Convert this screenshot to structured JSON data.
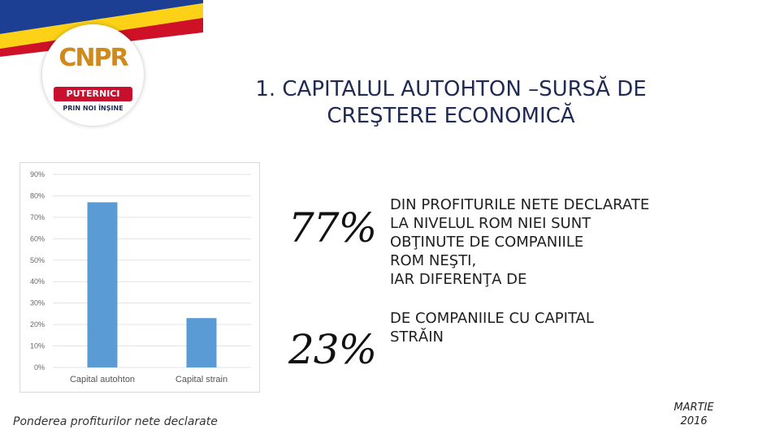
{
  "logo": {
    "mark": "CNPR",
    "band": "PUTERNICI",
    "tagline": "PRIN NOI ÎNȘINE"
  },
  "title": {
    "line1": "1. CAPITALUL AUTOHTON –SURSĂ DE",
    "line2": "CREŞTERE ECONOMICĂ"
  },
  "chart_data": {
    "type": "bar",
    "categories": [
      "Capital autohton",
      "Capital strain"
    ],
    "values": [
      77,
      23
    ],
    "ylim": [
      0,
      90
    ],
    "yticks": [
      "0%",
      "10%",
      "20%",
      "30%",
      "40%",
      "50%",
      "60%",
      "70%",
      "80%",
      "90%"
    ],
    "grid": true,
    "bar_color": "#5b9bd5"
  },
  "chart_caption": "Ponderea profiturilor nete declarate",
  "stats": [
    {
      "value": "77%",
      "lines": [
        "DIN PROFITURILE NETE DECLARATE",
        "LA NIVELUL ROM NIEI SUNT",
        "OBŢINUTE DE COMPANIILE",
        "ROM NEŞTI,",
        "IAR DIFERENŢA DE"
      ]
    },
    {
      "value": "23%",
      "lines": [
        "DE COMPANIILE CU CAPITAL",
        "STRĂIN"
      ]
    }
  ],
  "date": {
    "month": "MARTIE",
    "year": "2016"
  },
  "colors": {
    "title": "#1f2a55",
    "flag_blue": "#1c3f94",
    "flag_yellow": "#fcd116",
    "flag_red": "#ce1126"
  }
}
